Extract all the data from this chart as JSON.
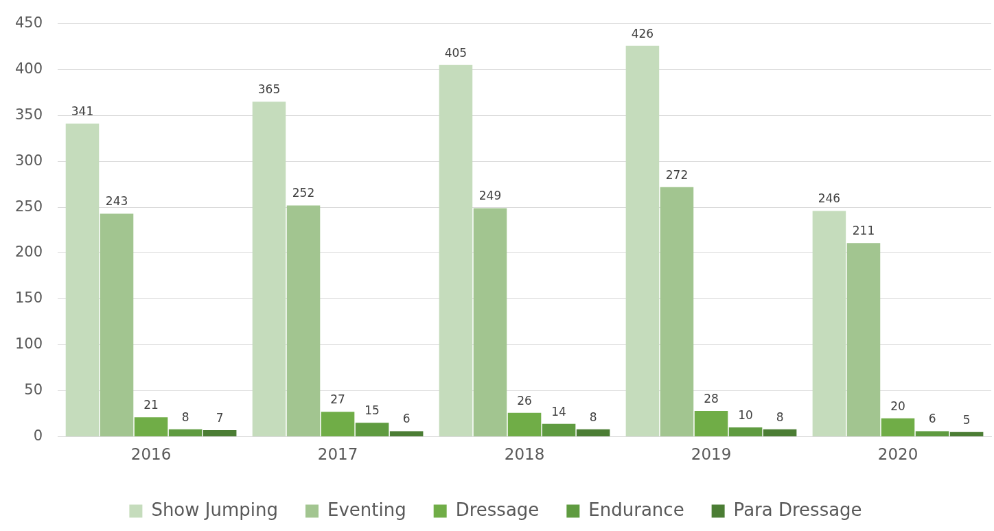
{
  "chart_data": {
    "type": "bar",
    "categories": [
      "2016",
      "2017",
      "2018",
      "2019",
      "2020"
    ],
    "series": [
      {
        "name": "Show Jumping",
        "color": "#c5dcbc",
        "values": [
          341,
          365,
          405,
          426,
          246
        ]
      },
      {
        "name": "Eventing",
        "color": "#a2c590",
        "values": [
          243,
          252,
          249,
          272,
          211
        ]
      },
      {
        "name": "Dressage",
        "color": "#70ad47",
        "values": [
          21,
          27,
          26,
          28,
          20
        ]
      },
      {
        "name": "Endurance",
        "color": "#5f9b40",
        "values": [
          8,
          15,
          14,
          10,
          6
        ]
      },
      {
        "name": "Para Dressage",
        "color": "#4b7d34",
        "values": [
          7,
          6,
          8,
          8,
          5
        ]
      }
    ],
    "ylim": [
      0,
      450
    ],
    "yticks": [
      0,
      50,
      100,
      150,
      200,
      250,
      300,
      350,
      400,
      450
    ],
    "grid": "y",
    "legend": "bottom",
    "data_labels": true
  }
}
